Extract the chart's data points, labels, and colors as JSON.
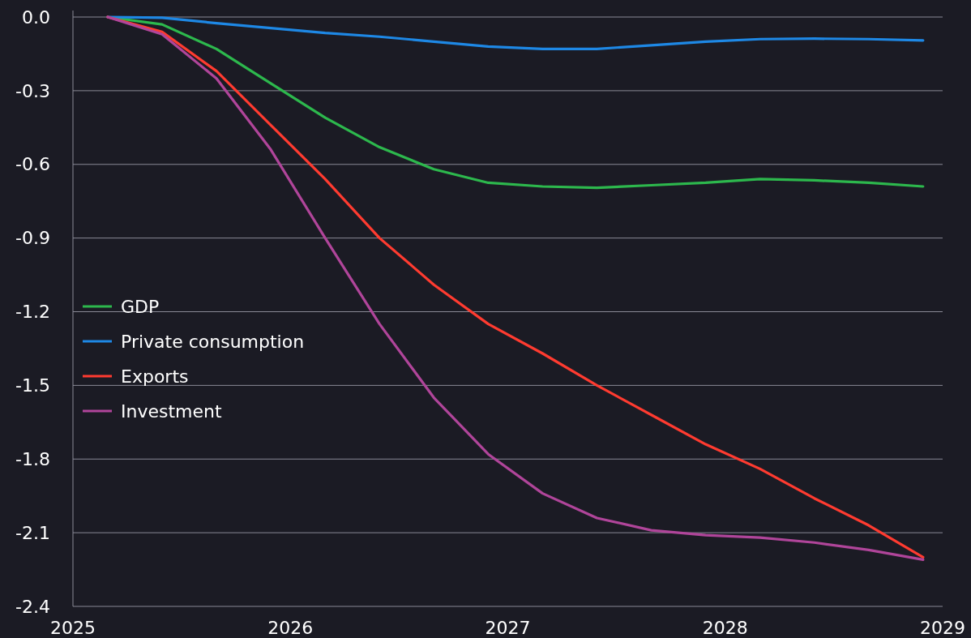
{
  "chart_data": {
    "type": "line",
    "x": [
      2025.16,
      2025.41,
      2025.66,
      2025.91,
      2026.16,
      2026.41,
      2026.66,
      2026.91,
      2027.16,
      2027.41,
      2027.66,
      2027.91,
      2028.16,
      2028.41,
      2028.66,
      2028.91
    ],
    "series": [
      {
        "name": "GDP",
        "color": "#2db84d",
        "values": [
          0,
          -0.03,
          -0.13,
          -0.27,
          -0.41,
          -0.53,
          -0.62,
          -0.675,
          -0.69,
          -0.695,
          -0.685,
          -0.675,
          -0.66,
          -0.665,
          -0.675,
          -0.69
        ]
      },
      {
        "name": "Private consumption",
        "color": "#1e88e5",
        "values": [
          0,
          -0.003,
          -0.025,
          -0.045,
          -0.065,
          -0.08,
          -0.1,
          -0.12,
          -0.13,
          -0.13,
          -0.115,
          -0.1,
          -0.09,
          -0.088,
          -0.09,
          -0.095
        ]
      },
      {
        "name": "Exports",
        "color": "#ff3b30",
        "values": [
          0,
          -0.06,
          -0.22,
          -0.44,
          -0.66,
          -0.9,
          -1.09,
          -1.25,
          -1.37,
          -1.5,
          -1.62,
          -1.74,
          -1.84,
          -1.96,
          -2.07,
          -2.2
        ]
      },
      {
        "name": "Investment",
        "color": "#b0459a",
        "values": [
          0,
          -0.07,
          -0.25,
          -0.54,
          -0.9,
          -1.25,
          -1.55,
          -1.78,
          -1.94,
          -2.04,
          -2.09,
          -2.11,
          -2.12,
          -2.14,
          -2.17,
          -2.21
        ]
      }
    ],
    "xlim": [
      2025,
      2029
    ],
    "xticks": [
      2025,
      2026,
      2027,
      2028,
      2029
    ],
    "ylim": [
      -2.4,
      0
    ],
    "yticks": [
      {
        "value": -2.4,
        "label": "-2.4"
      },
      {
        "value": -2.1,
        "label": "-2.1"
      },
      {
        "value": -1.8,
        "label": "-1.8"
      },
      {
        "value": -1.5,
        "label": "-1.5"
      },
      {
        "value": -1.2,
        "label": "-1.2"
      },
      {
        "value": -0.9,
        "label": "-0.9"
      },
      {
        "value": -0.6,
        "label": "-0.6"
      },
      {
        "value": -0.3,
        "label": "-0.3"
      },
      {
        "value": 0,
        "label": "0.0"
      }
    ],
    "grid": "y",
    "legend": "left",
    "marker": "none",
    "line_style": "solid"
  }
}
